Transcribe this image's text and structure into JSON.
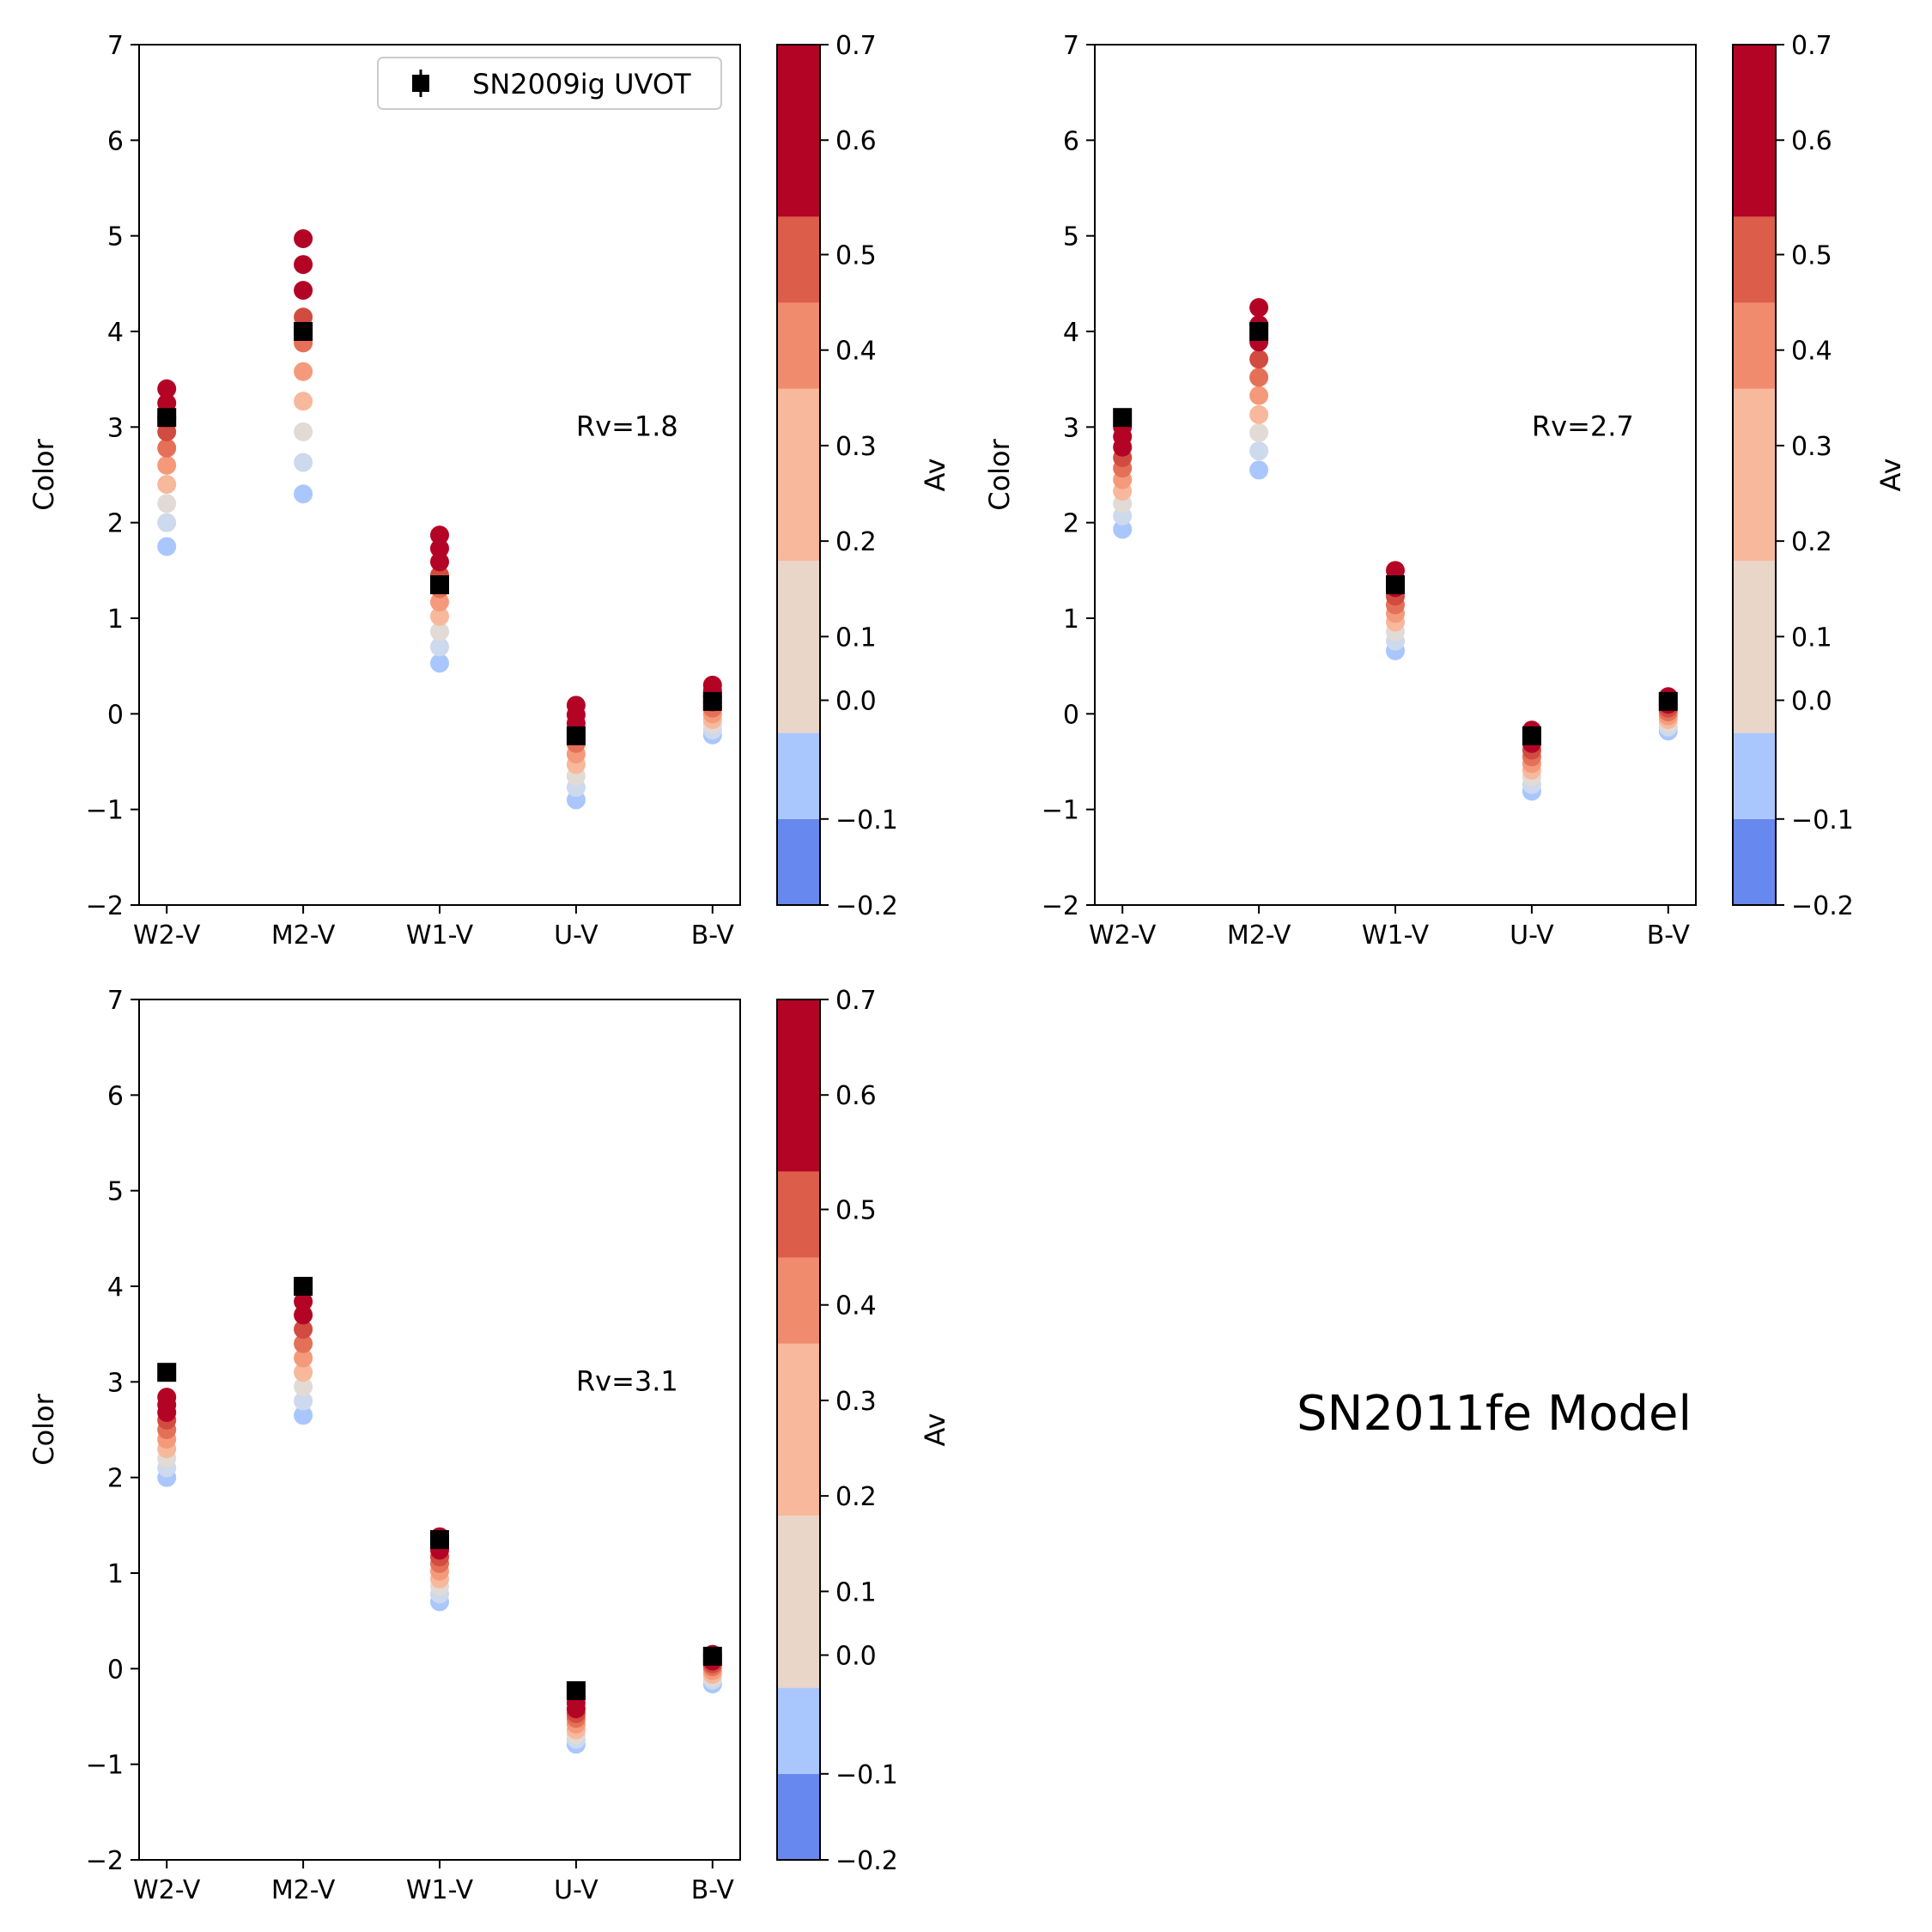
{
  "figure": {
    "model_title": "SN2011fe Model",
    "legend_label": "SN2009ig UVOT",
    "colorbar_label": "Av",
    "colorbar_ticks": [
      "−0.2",
      "−0.1",
      "0.0",
      "0.1",
      "0.2",
      "0.3",
      "0.4",
      "0.5",
      "0.6",
      "0.7"
    ],
    "colorbar_bands": [
      {
        "from": -0.2,
        "to": -0.1,
        "color": "#6788ee"
      },
      {
        "from": -0.1,
        "to": 0.0,
        "color": "#aac7fd"
      },
      {
        "from": 0.0,
        "to": 0.1,
        "color": "#ead5c9"
      },
      {
        "from": 0.1,
        "to": 0.2,
        "color": "#f7b89c"
      },
      {
        "from": 0.2,
        "to": 0.3,
        "color": "#f08b6e"
      },
      {
        "from": 0.3,
        "to": 0.4,
        "color": "#dc5d4a"
      },
      {
        "from": 0.4,
        "to": 0.5,
        "color": "#b40426"
      }
    ],
    "model_point_colors": [
      "#a9c6fd",
      "#cdd9ec",
      "#e2dad5",
      "#f7b89c",
      "#f49a7b",
      "#e57058",
      "#d24b40",
      "#b40426",
      "#b40426",
      "#b40426"
    ],
    "observed_marker_color": "#000000"
  },
  "chart_data": [
    {
      "type": "scatter",
      "annotation": "Rv=1.8",
      "ylabel": "Color",
      "categories": [
        "W2-V",
        "M2-V",
        "W1-V",
        "U-V",
        "B-V"
      ],
      "ylim": [
        -2,
        7
      ],
      "yticks": [
        "−2",
        "−1",
        "0",
        "1",
        "2",
        "3",
        "4",
        "5",
        "6",
        "7"
      ],
      "show_legend": true,
      "legend_position": "upper right",
      "model_series": [
        [
          1.75,
          2.0,
          2.2,
          2.4,
          2.6,
          2.78,
          2.95,
          3.1,
          3.25,
          3.4
        ],
        [
          2.3,
          2.63,
          2.95,
          3.27,
          3.58,
          3.88,
          4.15,
          4.43,
          4.7,
          4.97
        ],
        [
          0.53,
          0.7,
          0.86,
          1.02,
          1.17,
          1.31,
          1.45,
          1.59,
          1.73,
          1.87
        ],
        [
          -0.9,
          -0.77,
          -0.65,
          -0.53,
          -0.42,
          -0.31,
          -0.2,
          -0.1,
          -0.01,
          0.09
        ],
        [
          -0.22,
          -0.17,
          -0.11,
          -0.06,
          0.0,
          0.06,
          0.12,
          0.18,
          0.24,
          0.3
        ]
      ],
      "observed": [
        3.1,
        4.0,
        1.35,
        -0.23,
        0.13
      ]
    },
    {
      "type": "scatter",
      "annotation": "Rv=2.7",
      "ylabel": "Color",
      "categories": [
        "W2-V",
        "M2-V",
        "W1-V",
        "U-V",
        "B-V"
      ],
      "ylim": [
        -2,
        7
      ],
      "yticks": [
        "−2",
        "−1",
        "0",
        "1",
        "2",
        "3",
        "4",
        "5",
        "6",
        "7"
      ],
      "show_legend": false,
      "model_series": [
        [
          1.93,
          2.07,
          2.2,
          2.33,
          2.45,
          2.57,
          2.68,
          2.79,
          2.9,
          3.0
        ],
        [
          2.55,
          2.75,
          2.94,
          3.13,
          3.33,
          3.52,
          3.71,
          3.89,
          4.07,
          4.25
        ],
        [
          0.66,
          0.76,
          0.86,
          0.96,
          1.05,
          1.14,
          1.23,
          1.32,
          1.41,
          1.5
        ],
        [
          -0.81,
          -0.74,
          -0.66,
          -0.59,
          -0.52,
          -0.45,
          -0.38,
          -0.31,
          -0.24,
          -0.17
        ],
        [
          -0.18,
          -0.14,
          -0.1,
          -0.06,
          -0.02,
          0.02,
          0.06,
          0.1,
          0.14,
          0.18
        ]
      ],
      "observed": [
        3.1,
        4.0,
        1.35,
        -0.23,
        0.13
      ]
    },
    {
      "type": "scatter",
      "annotation": "Rv=3.1",
      "ylabel": "Color",
      "categories": [
        "W2-V",
        "M2-V",
        "W1-V",
        "U-V",
        "B-V"
      ],
      "ylim": [
        -2,
        7
      ],
      "yticks": [
        "−2",
        "−1",
        "0",
        "1",
        "2",
        "3",
        "4",
        "5",
        "6",
        "7"
      ],
      "show_legend": false,
      "model_series": [
        [
          2.0,
          2.1,
          2.2,
          2.3,
          2.4,
          2.5,
          2.6,
          2.68,
          2.76,
          2.84
        ],
        [
          2.65,
          2.8,
          2.95,
          3.1,
          3.25,
          3.4,
          3.55,
          3.7,
          3.84,
          3.98
        ],
        [
          0.7,
          0.78,
          0.86,
          0.94,
          1.02,
          1.1,
          1.17,
          1.24,
          1.31,
          1.38
        ],
        [
          -0.79,
          -0.74,
          -0.69,
          -0.64,
          -0.58,
          -0.52,
          -0.47,
          -0.42,
          -0.36,
          -0.3
        ],
        [
          -0.16,
          -0.12,
          -0.09,
          -0.06,
          -0.02,
          0.02,
          0.05,
          0.08,
          0.12,
          0.15
        ]
      ],
      "observed": [
        3.1,
        4.0,
        1.35,
        -0.23,
        0.13
      ]
    }
  ]
}
